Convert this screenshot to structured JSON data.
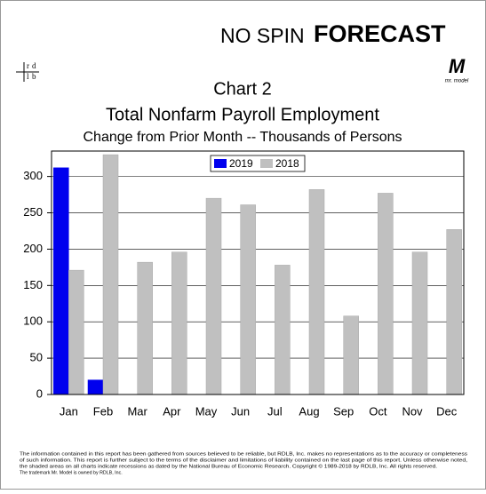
{
  "header": {
    "brand_left": "NO SPIN",
    "brand_right": "FORECAST",
    "logo_letters": [
      "r",
      "d",
      "l",
      "b"
    ],
    "model_mark": "M",
    "model_caption": "mr. model"
  },
  "chart_data": {
    "type": "bar",
    "title": "Chart 2",
    "subtitle": "Total Nonfarm Payroll Employment",
    "subtitle2": "Change from Prior Month -- Thousands of Persons",
    "categories": [
      "Jan",
      "Feb",
      "Mar",
      "Apr",
      "May",
      "Jun",
      "Jul",
      "Aug",
      "Sep",
      "Oct",
      "Nov",
      "Dec"
    ],
    "series": [
      {
        "name": "2019",
        "color": "#0000ee",
        "values": [
          312,
          20,
          null,
          null,
          null,
          null,
          null,
          null,
          null,
          null,
          null,
          null
        ]
      },
      {
        "name": "2018",
        "color": "#c0c0c0",
        "values": [
          171,
          330,
          182,
          196,
          270,
          261,
          178,
          282,
          108,
          277,
          196,
          227
        ]
      }
    ],
    "ylim": [
      0,
      335
    ],
    "yticks": [
      0,
      50,
      100,
      150,
      200,
      250,
      300
    ],
    "grid": true,
    "legend": "top"
  },
  "footer": {
    "lines": [
      "The information contained in this report has been gathered from sources believed to be reliable, but RDLB, Inc. makes no representations as to the accuracy or completeness",
      "of such information. This report is further subject to the terms of the disclaimer and limitations of liability contained on the last page of this report. Unless otherwise noted,",
      "the shaded areas on all charts indicate recessions as dated by the National Bureau of Economic Research. Copyright © 1989-2018 by RDLB, Inc. All rights reserved.",
      "The trademark Mr. Model is owned by RDLB, Inc."
    ]
  }
}
